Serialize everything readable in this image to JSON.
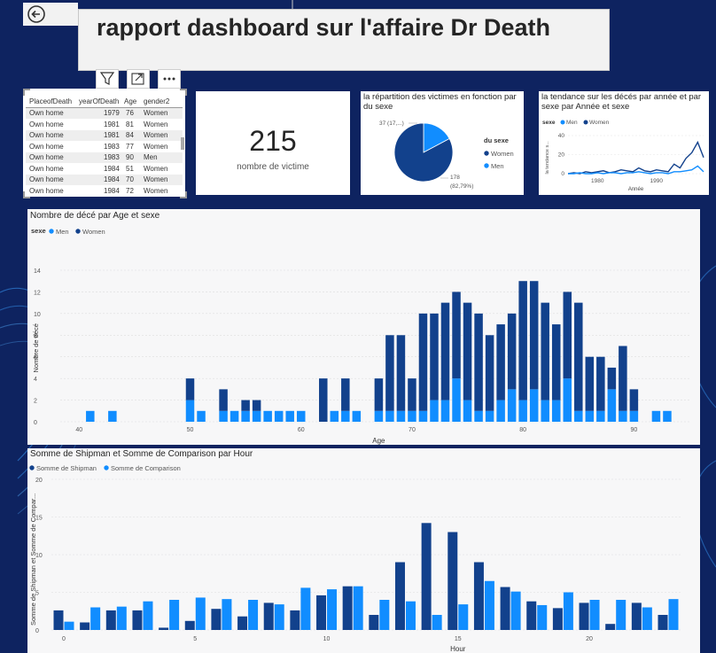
{
  "header": {
    "title": "rapport dashboard sur l'affaire Dr Death"
  },
  "table": {
    "columns": [
      "PlaceofDeath",
      "yearOfDeath",
      "Age",
      "gender2"
    ],
    "rows": [
      [
        "Own home",
        "1979",
        "76",
        "Women"
      ],
      [
        "Own home",
        "1981",
        "81",
        "Women"
      ],
      [
        "Own home",
        "1981",
        "84",
        "Women"
      ],
      [
        "Own home",
        "1983",
        "77",
        "Women"
      ],
      [
        "Own home",
        "1983",
        "90",
        "Men"
      ],
      [
        "Own home",
        "1984",
        "51",
        "Women"
      ],
      [
        "Own home",
        "1984",
        "70",
        "Women"
      ],
      [
        "Own home",
        "1984",
        "72",
        "Women"
      ]
    ]
  },
  "kpi": {
    "value": "215",
    "label": "nombre de victime"
  },
  "pie": {
    "title": "la répartition des victimes en fonction par du sexe",
    "legend_title": "du sexe",
    "label_men": "37 (17,...)",
    "label_women_a": "178",
    "label_women_b": "(82,79%)"
  },
  "line_card": {
    "title": "la tendance sur les décés par année et par sexe par Année et sexe",
    "legend_title": "sexe",
    "ylabel": "la tendance s...",
    "xlabel": "Année"
  },
  "age_card": {
    "title": "Nombre de décé par Age et sexe",
    "legend_title": "sexe"
  },
  "hour_card": {
    "title": "Somme de Shipman et Somme de Comparison par Hour"
  },
  "colors": {
    "men": "#118DFF",
    "women": "#12418C",
    "navy": "#0e2360"
  },
  "chart_data": [
    {
      "type": "pie",
      "categories": [
        "Women",
        "Men"
      ],
      "values": [
        178,
        37
      ],
      "percent": [
        82.79,
        17.21
      ]
    },
    {
      "type": "line",
      "x": [
        1975,
        1976,
        1977,
        1978,
        1979,
        1980,
        1981,
        1982,
        1983,
        1984,
        1985,
        1986,
        1987,
        1988,
        1989,
        1990,
        1991,
        1992,
        1993,
        1994,
        1995,
        1996,
        1997,
        1998
      ],
      "series": [
        {
          "name": "Women",
          "values": [
            0,
            1,
            0,
            2,
            1,
            2,
            3,
            1,
            2,
            4,
            3,
            2,
            6,
            3,
            2,
            4,
            3,
            2,
            10,
            6,
            16,
            22,
            33,
            17
          ]
        },
        {
          "name": "Men",
          "values": [
            0,
            0,
            1,
            0,
            0,
            1,
            0,
            1,
            1,
            0,
            1,
            1,
            2,
            1,
            0,
            1,
            1,
            0,
            2,
            2,
            3,
            4,
            8,
            2
          ]
        }
      ],
      "xticks": [
        1980,
        1990
      ],
      "ylim": [
        0,
        40
      ],
      "yticks": [
        0,
        20,
        40
      ]
    },
    {
      "type": "bar",
      "stacked": true,
      "xlabel": "Age",
      "ylabel": "Nombre de décé",
      "x": [
        41,
        43,
        50,
        51,
        53,
        54,
        55,
        56,
        57,
        58,
        59,
        60,
        62,
        63,
        64,
        65,
        67,
        68,
        69,
        70,
        71,
        72,
        73,
        74,
        75,
        76,
        77,
        78,
        79,
        80,
        81,
        82,
        83,
        84,
        85,
        86,
        87,
        88,
        89,
        90,
        92,
        93
      ],
      "series": [
        {
          "name": "Men",
          "values": [
            1,
            1,
            2,
            1,
            1,
            1,
            1,
            1,
            1,
            1,
            1,
            1,
            0,
            1,
            1,
            1,
            1,
            1,
            1,
            1,
            1,
            2,
            2,
            4,
            2,
            1,
            1,
            2,
            3,
            2,
            3,
            2,
            2,
            4,
            1,
            1,
            1,
            3,
            1,
            1,
            1,
            1
          ]
        },
        {
          "name": "Women",
          "values": [
            0,
            0,
            2,
            0,
            2,
            0,
            1,
            1,
            0,
            0,
            0,
            0,
            4,
            0,
            3,
            0,
            3,
            7,
            7,
            3,
            9,
            8,
            9,
            8,
            9,
            9,
            7,
            7,
            7,
            11,
            10,
            9,
            7,
            8,
            10,
            5,
            5,
            2,
            6,
            2,
            0,
            0
          ]
        }
      ],
      "xticks": [
        40,
        50,
        60,
        70,
        80,
        90
      ],
      "ylim": [
        0,
        14
      ],
      "yticks": [
        0,
        2,
        4,
        6,
        8,
        10,
        12,
        14
      ]
    },
    {
      "type": "bar",
      "xlabel": "Hour",
      "ylabel": "Somme de Shipman et Somme de Compar...",
      "x": [
        0,
        1,
        2,
        3,
        4,
        5,
        6,
        7,
        8,
        9,
        10,
        11,
        12,
        13,
        14,
        15,
        16,
        17,
        18,
        19,
        20,
        21,
        22,
        23
      ],
      "series": [
        {
          "name": "Somme de Shipman",
          "values": [
            2.6,
            1.0,
            2.6,
            2.6,
            0.3,
            1.2,
            2.8,
            1.8,
            3.6,
            2.6,
            4.6,
            5.8,
            2.0,
            9.0,
            14.2,
            13.0,
            9.0,
            5.7,
            3.8,
            2.9,
            3.6,
            0.8,
            3.6,
            2.0
          ]
        },
        {
          "name": "Somme de Comparison",
          "values": [
            1.1,
            3.0,
            3.1,
            3.8,
            4.0,
            4.3,
            4.1,
            4.0,
            3.4,
            5.6,
            5.4,
            5.8,
            4.0,
            3.8,
            2.0,
            3.4,
            6.5,
            5.1,
            3.3,
            5.0,
            4.0,
            4.0,
            3.0,
            4.1
          ]
        }
      ],
      "xticks": [
        0,
        5,
        10,
        15,
        20
      ],
      "ylim": [
        0,
        20
      ],
      "yticks": [
        0,
        5,
        10,
        15,
        20
      ]
    }
  ]
}
